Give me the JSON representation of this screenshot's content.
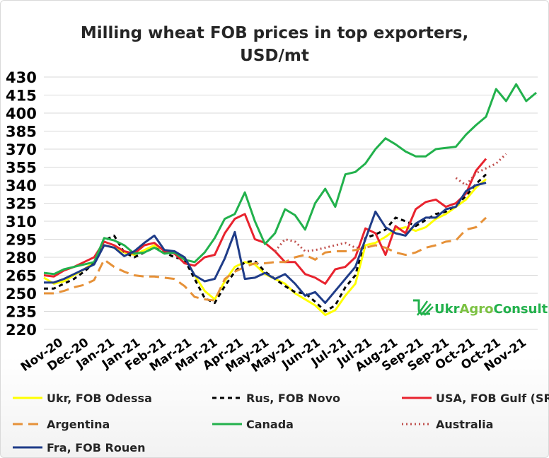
{
  "chart_data": {
    "type": "line",
    "title_lines": [
      "Milling wheat FOB prices in top exporters,",
      "USD/mt"
    ],
    "yticks": [
      430,
      415,
      400,
      385,
      370,
      355,
      340,
      325,
      310,
      295,
      280,
      265,
      250,
      235,
      220
    ],
    "ylim": [
      220,
      430
    ],
    "xticks": [
      "Nov-20",
      "Dec-20",
      "Jan-21",
      "Jan-21",
      "Feb-21",
      "Mar-21",
      "Mar-21",
      "Apr-21",
      "May-21",
      "May-21",
      "Jun-21",
      "Jul-21",
      "Jul-21",
      "Aug-21",
      "Sep-21",
      "Sep-21",
      "Oct-21",
      "Oct-21",
      "Nov-21"
    ],
    "grid": true,
    "legend_position": "bottom",
    "watermark": {
      "prefix": "Ukr",
      "highlight": "Agro",
      "suffix": "Consult"
    },
    "series": [
      {
        "name": "Ukr, FOB Odessa",
        "color": "#ffff00",
        "dash": "solid",
        "values": [
          263,
          258,
          260,
          265,
          270,
          276,
          290,
          288,
          284,
          282,
          286,
          290,
          286,
          284,
          280,
          265,
          252,
          245,
          260,
          272,
          276,
          274,
          266,
          262,
          258,
          250,
          245,
          240,
          232,
          236,
          248,
          258,
          290,
          292,
          297,
          303,
          305,
          302,
          305,
          312,
          316,
          322,
          328,
          338,
          345
        ]
      },
      {
        "name": "Rus, FOB Novo",
        "color": "#000000",
        "dash": "6,5",
        "values": [
          254,
          254,
          258,
          262,
          268,
          275,
          294,
          298,
          284,
          280,
          284,
          288,
          284,
          280,
          278,
          262,
          246,
          242,
          256,
          268,
          276,
          277,
          268,
          262,
          256,
          251,
          250,
          243,
          235,
          240,
          255,
          265,
          296,
          299,
          303,
          313,
          310,
          306,
          311,
          316,
          318,
          323,
          331,
          341,
          349
        ]
      },
      {
        "name": "USA, FOB Gulf (SRW)",
        "color": "#e8232e",
        "dash": "solid",
        "values": [
          265,
          264,
          269,
          272,
          276,
          280,
          293,
          290,
          285,
          283,
          290,
          292,
          285,
          283,
          275,
          273,
          280,
          282,
          300,
          312,
          316,
          295,
          292,
          285,
          276,
          276,
          266,
          263,
          258,
          270,
          272,
          280,
          304,
          300,
          282,
          306,
          300,
          320,
          326,
          328,
          322,
          325,
          333,
          352,
          362
        ]
      },
      {
        "name": "Argentina",
        "color": "#e69138",
        "dash": "14,8",
        "values": [
          250,
          250,
          252,
          255,
          257,
          261,
          278,
          272,
          268,
          265,
          264,
          264,
          263,
          262,
          256,
          247,
          245,
          244,
          262,
          268,
          272,
          275,
          275,
          276,
          276,
          280,
          282,
          278,
          284,
          285,
          285,
          286,
          288,
          290,
          288,
          284,
          282,
          284,
          288,
          290,
          293,
          294,
          303,
          305,
          313
        ]
      },
      {
        "name": "Canada",
        "color": "#22b14c",
        "dash": "solid",
        "values": [
          267,
          266,
          270,
          272,
          274,
          276,
          296,
          294,
          290,
          283,
          284,
          288,
          283,
          284,
          278,
          276,
          284,
          296,
          312,
          316,
          334,
          310,
          291,
          300,
          320,
          315,
          303,
          325,
          337,
          322,
          349,
          351,
          358,
          370,
          379,
          374,
          368,
          364,
          364,
          370,
          371,
          372,
          382,
          390,
          397,
          420,
          410,
          424,
          410,
          417
        ]
      },
      {
        "name": "Australia",
        "color": "#c0504d",
        "dash": "2,4",
        "x_start": 23,
        "values": [
          285,
          295,
          293,
          285,
          286,
          288,
          290,
          292,
          288,
          288
        ],
        "x_start2": 41,
        "values2": [
          346,
          340,
          350,
          354,
          358,
          366
        ]
      },
      {
        "name": "Fra, FOB Rouen",
        "color": "#1f3c88",
        "dash": "solid",
        "values": [
          259,
          259,
          262,
          266,
          270,
          274,
          290,
          288,
          281,
          285,
          292,
          298,
          286,
          285,
          280,
          265,
          260,
          262,
          279,
          301,
          262,
          263,
          267,
          262,
          266,
          258,
          248,
          251,
          242,
          252,
          262,
          272,
          295,
          318,
          305,
          300,
          298,
          308,
          313,
          313,
          320,
          322,
          335,
          340,
          342
        ]
      }
    ]
  }
}
